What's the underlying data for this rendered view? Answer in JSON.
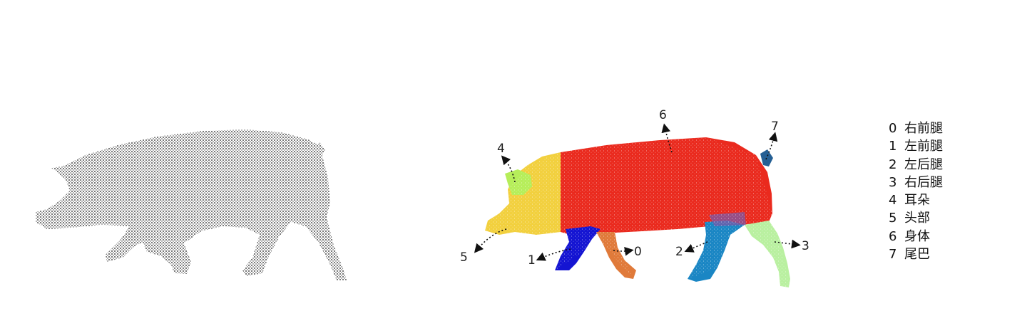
{
  "parts": [
    {
      "id": "0",
      "name": "右前腿",
      "color": "#e07a3a"
    },
    {
      "id": "1",
      "name": "左前腿",
      "color": "#1414d2"
    },
    {
      "id": "2",
      "name": "左后腿",
      "color": "#1a86c4"
    },
    {
      "id": "3",
      "name": "右后腿",
      "color": "#b9f0a0"
    },
    {
      "id": "4",
      "name": "耳朵",
      "color": "#b6ee5a"
    },
    {
      "id": "5",
      "name": "头部",
      "color": "#f2d03e"
    },
    {
      "id": "6",
      "name": "身体",
      "color": "#ea2a1e"
    },
    {
      "id": "7",
      "name": "尾巴",
      "color": "#245f94"
    }
  ],
  "raw_cloud": {
    "color": "#1a1a1a"
  }
}
